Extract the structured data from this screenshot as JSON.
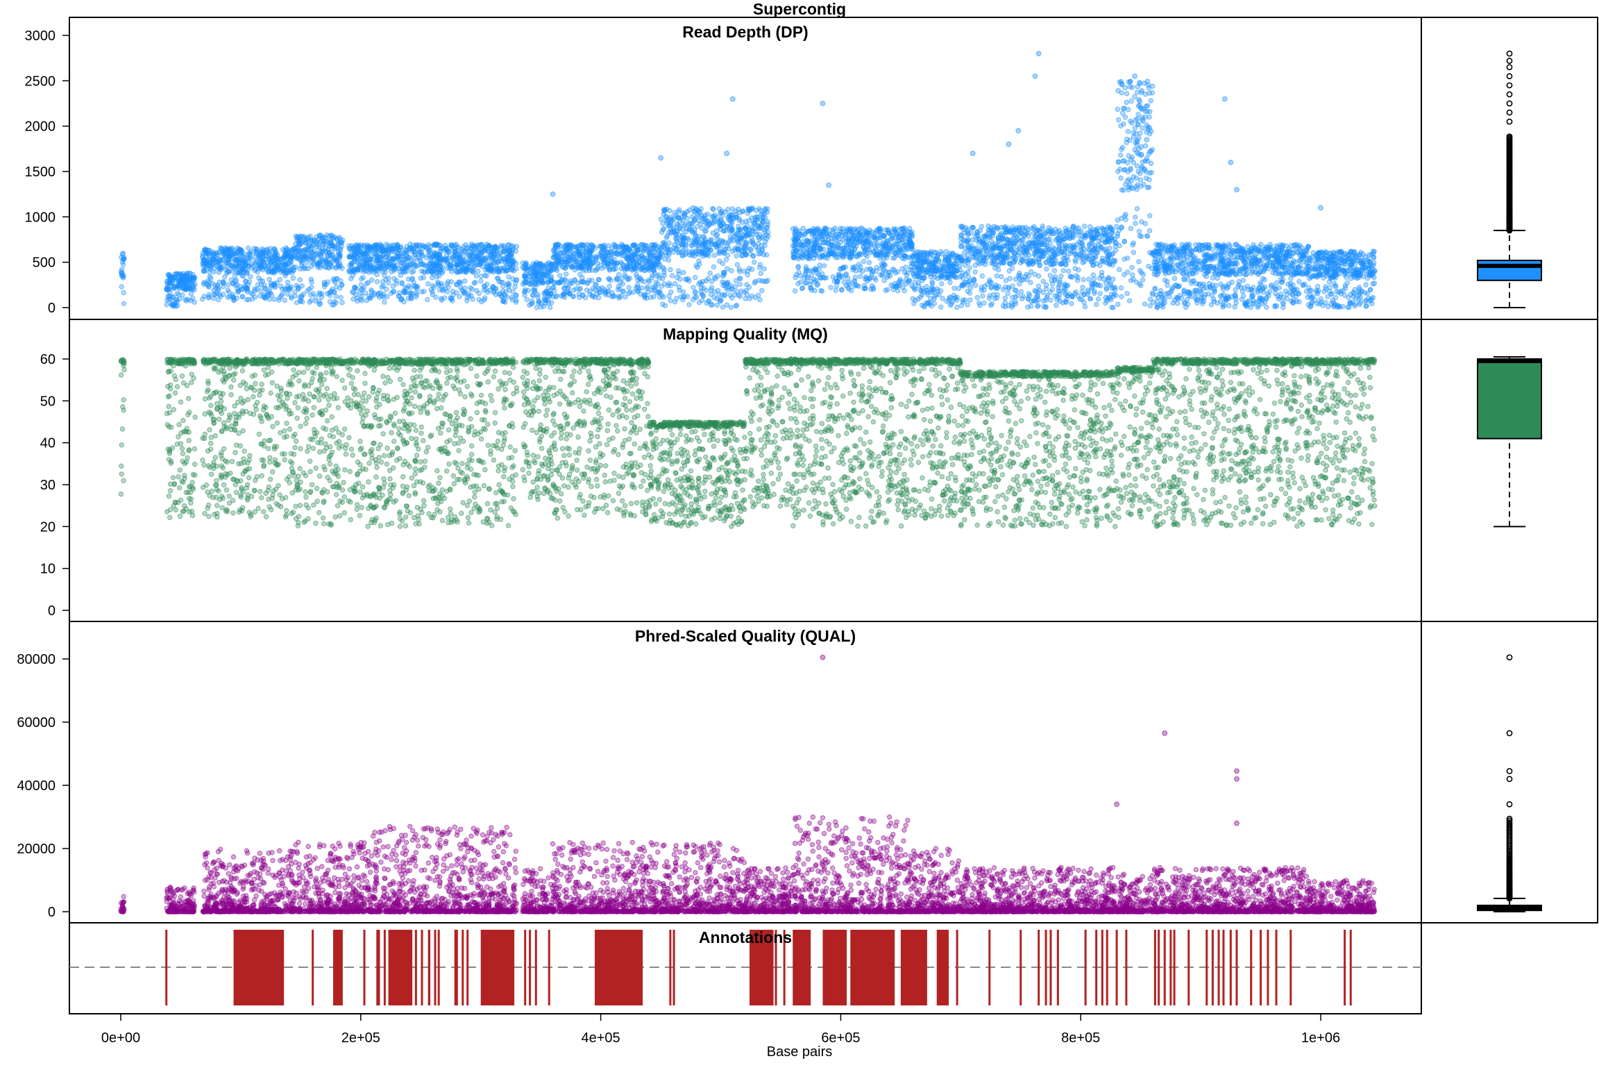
{
  "figure": {
    "title": "Supercontig",
    "xlabel": "Base pairs",
    "x_ticks": [
      "0e+00",
      "2e+05",
      "4e+05",
      "6e+05",
      "8e+05",
      "1e+06"
    ],
    "x_tick_values": [
      0,
      200000,
      400000,
      600000,
      800000,
      1000000
    ],
    "x_range": [
      -40000,
      1085000
    ]
  },
  "chart_data": [
    {
      "type": "scatter",
      "panel": "dp",
      "title": "Read Depth (DP)",
      "color": "#1e90ff",
      "ylim": [
        -40,
        3120
      ],
      "y_ticks": [
        "0",
        "500",
        "1000",
        "1500",
        "2000",
        "2500",
        "3000"
      ],
      "y_tick_values": [
        0,
        500,
        1000,
        1500,
        2000,
        2500,
        3000
      ],
      "blocks": [
        {
          "x": [
            0,
            3000
          ],
          "y": [
            0,
            600
          ]
        },
        {
          "x": [
            38000,
            62000
          ],
          "y": [
            0,
            380
          ]
        },
        {
          "x": [
            68000,
            145000
          ],
          "y": [
            80,
            660
          ]
        },
        {
          "x": [
            145000,
            185000
          ],
          "y": [
            30,
            800
          ]
        },
        {
          "x": [
            190000,
            330000
          ],
          "y": [
            60,
            700
          ]
        },
        {
          "x": [
            335000,
            360000
          ],
          "y": [
            0,
            500
          ]
        },
        {
          "x": [
            360000,
            450000
          ],
          "y": [
            100,
            700
          ]
        },
        {
          "x": [
            450000,
            540000
          ],
          "y": [
            0,
            1100
          ]
        },
        {
          "x": [
            560000,
            660000
          ],
          "y": [
            180,
            880
          ]
        },
        {
          "x": [
            660000,
            700000
          ],
          "y": [
            0,
            620
          ]
        },
        {
          "x": [
            700000,
            830000
          ],
          "y": [
            0,
            900
          ]
        },
        {
          "x": [
            830000,
            860000
          ],
          "y": [
            0,
            2500
          ]
        },
        {
          "x": [
            860000,
            990000
          ],
          "y": [
            0,
            700
          ]
        },
        {
          "x": [
            990000,
            1045000
          ],
          "y": [
            0,
            620
          ]
        }
      ],
      "outliers": [
        {
          "x": 360000,
          "y": 1250
        },
        {
          "x": 450000,
          "y": 1650
        },
        {
          "x": 510000,
          "y": 2300
        },
        {
          "x": 505000,
          "y": 1700
        },
        {
          "x": 585000,
          "y": 2250
        },
        {
          "x": 590000,
          "y": 1350
        },
        {
          "x": 740000,
          "y": 1800
        },
        {
          "x": 748000,
          "y": 1950
        },
        {
          "x": 765000,
          "y": 2800
        },
        {
          "x": 762000,
          "y": 2550
        },
        {
          "x": 710000,
          "y": 1700
        },
        {
          "x": 845000,
          "y": 2550
        },
        {
          "x": 850000,
          "y": 2200
        },
        {
          "x": 855000,
          "y": 1850
        },
        {
          "x": 920000,
          "y": 2300
        },
        {
          "x": 925000,
          "y": 1600
        },
        {
          "x": 930000,
          "y": 1300
        },
        {
          "x": 1000000,
          "y": 1100
        }
      ],
      "boxplot": {
        "min": 0,
        "q1": 300,
        "median": 460,
        "q3": 520,
        "whisker_high": 850,
        "max": 2800
      }
    },
    {
      "type": "scatter",
      "panel": "mq",
      "title": "Mapping Quality (MQ)",
      "color": "#2e8b57",
      "ylim": [
        -1,
        65
      ],
      "y_ticks": [
        "0",
        "10",
        "20",
        "30",
        "40",
        "50",
        "60"
      ],
      "y_tick_values": [
        0,
        10,
        20,
        30,
        40,
        50,
        60
      ],
      "blocks": [
        {
          "x": [
            0,
            3000
          ],
          "y": [
            23,
            60
          ]
        },
        {
          "x": [
            38000,
            62000
          ],
          "y": [
            22,
            60
          ]
        },
        {
          "x": [
            68000,
            145000
          ],
          "y": [
            22,
            60
          ]
        },
        {
          "x": [
            145000,
            210000
          ],
          "y": [
            20,
            60
          ]
        },
        {
          "x": [
            210000,
            330000
          ],
          "y": [
            20,
            60
          ]
        },
        {
          "x": [
            335000,
            360000
          ],
          "y": [
            26,
            60
          ]
        },
        {
          "x": [
            360000,
            440000
          ],
          "y": [
            22,
            60
          ]
        },
        {
          "x": [
            440000,
            520000
          ],
          "y": [
            20,
            45
          ]
        },
        {
          "x": [
            520000,
            560000
          ],
          "y": [
            24,
            60
          ]
        },
        {
          "x": [
            560000,
            660000
          ],
          "y": [
            20,
            60
          ]
        },
        {
          "x": [
            660000,
            700000
          ],
          "y": [
            22,
            60
          ]
        },
        {
          "x": [
            700000,
            830000
          ],
          "y": [
            20,
            57
          ]
        },
        {
          "x": [
            830000,
            860000
          ],
          "y": [
            22,
            58
          ]
        },
        {
          "x": [
            860000,
            990000
          ],
          "y": [
            20,
            60
          ]
        },
        {
          "x": [
            990000,
            1045000
          ],
          "y": [
            20,
            60
          ]
        }
      ],
      "outliers": [],
      "boxplot": {
        "min": 20,
        "q1": 41,
        "median": 59.5,
        "q3": 60,
        "whisker_high": 60.5,
        "max": 60.5
      }
    },
    {
      "type": "scatter",
      "panel": "qual",
      "title": "Phred-Scaled Quality (QUAL)",
      "color": "#8b008b",
      "ylim": [
        -1500,
        85000
      ],
      "y_ticks": [
        "0",
        "20000",
        "40000",
        "60000",
        "80000"
      ],
      "y_tick_values": [
        0,
        20000,
        40000,
        60000,
        80000
      ],
      "blocks": [
        {
          "x": [
            0,
            3000
          ],
          "y": [
            0,
            7000
          ]
        },
        {
          "x": [
            38000,
            62000
          ],
          "y": [
            0,
            8000
          ]
        },
        {
          "x": [
            68000,
            145000
          ],
          "y": [
            0,
            20000
          ]
        },
        {
          "x": [
            145000,
            210000
          ],
          "y": [
            0,
            22000
          ]
        },
        {
          "x": [
            210000,
            330000
          ],
          "y": [
            0,
            27000
          ]
        },
        {
          "x": [
            335000,
            360000
          ],
          "y": [
            0,
            14000
          ]
        },
        {
          "x": [
            360000,
            440000
          ],
          "y": [
            0,
            22000
          ]
        },
        {
          "x": [
            440000,
            520000
          ],
          "y": [
            0,
            22000
          ]
        },
        {
          "x": [
            520000,
            560000
          ],
          "y": [
            0,
            14000
          ]
        },
        {
          "x": [
            560000,
            660000
          ],
          "y": [
            0,
            30000
          ]
        },
        {
          "x": [
            660000,
            700000
          ],
          "y": [
            0,
            20000
          ]
        },
        {
          "x": [
            700000,
            830000
          ],
          "y": [
            0,
            14000
          ]
        },
        {
          "x": [
            830000,
            860000
          ],
          "y": [
            0,
            12000
          ]
        },
        {
          "x": [
            860000,
            990000
          ],
          "y": [
            0,
            14000
          ]
        },
        {
          "x": [
            990000,
            1045000
          ],
          "y": [
            0,
            10000
          ]
        }
      ],
      "outliers": [
        {
          "x": 585000,
          "y": 80500
        },
        {
          "x": 870000,
          "y": 56500
        },
        {
          "x": 930000,
          "y": 44500
        },
        {
          "x": 930000,
          "y": 42000
        },
        {
          "x": 830000,
          "y": 34000
        },
        {
          "x": 930000,
          "y": 28000
        }
      ],
      "boxplot": {
        "min": 0,
        "q1": 400,
        "median": 1200,
        "q3": 2000,
        "whisker_high": 4200,
        "max": 80500
      }
    },
    {
      "type": "bar",
      "panel": "annotations",
      "title": "Annotations",
      "color": "#b22222",
      "ranges": [
        [
          94000,
          136000
        ],
        [
          177000,
          185000
        ],
        [
          213000,
          216000
        ],
        [
          223000,
          243000
        ],
        [
          256000,
          258000
        ],
        [
          278000,
          281000
        ],
        [
          300000,
          328000
        ],
        [
          395000,
          435000
        ],
        [
          524000,
          544000
        ],
        [
          560000,
          575000
        ],
        [
          585000,
          605000
        ],
        [
          608000,
          645000
        ],
        [
          650000,
          672000
        ],
        [
          680000,
          690000
        ]
      ],
      "lines": [
        38000,
        160000,
        203000,
        220000,
        246000,
        251000,
        262000,
        265000,
        285000,
        289000,
        337000,
        341000,
        346000,
        357000,
        458000,
        461000,
        546000,
        553000,
        593000,
        697000,
        724000,
        750000,
        765000,
        771000,
        775000,
        781000,
        804000,
        813000,
        818000,
        822000,
        830000,
        838000,
        862000,
        865000,
        870000,
        875000,
        878000,
        890000,
        905000,
        910000,
        915000,
        919000,
        925000,
        930000,
        942000,
        950000,
        956000,
        963000,
        975000,
        1020000,
        1025000
      ]
    }
  ]
}
